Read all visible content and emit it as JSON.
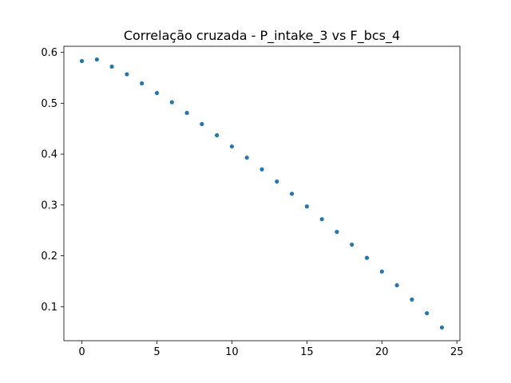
{
  "chart_data": {
    "type": "scatter",
    "title": "Correlação cruzada - P_intake_3 vs F_bcs_4",
    "xlabel": "",
    "ylabel": "",
    "xlim": [
      -1.2,
      25.2
    ],
    "ylim": [
      0.033,
      0.612
    ],
    "x_ticks": [
      0,
      5,
      10,
      15,
      20,
      25
    ],
    "y_ticks": [
      0.1,
      0.2,
      0.3,
      0.4,
      0.5,
      0.6
    ],
    "x_tick_labels": [
      "0",
      "5",
      "10",
      "15",
      "20",
      "25"
    ],
    "y_tick_labels": [
      "0.1",
      "0.2",
      "0.3",
      "0.4",
      "0.5",
      "0.6"
    ],
    "grid": false,
    "series": [
      {
        "color": "#1f77b4",
        "x": [
          0,
          1,
          2,
          3,
          4,
          5,
          6,
          7,
          8,
          9,
          10,
          11,
          12,
          13,
          14,
          15,
          16,
          17,
          18,
          19,
          20,
          21,
          22,
          23,
          24
        ],
        "y": [
          0.583,
          0.586,
          0.572,
          0.557,
          0.539,
          0.52,
          0.502,
          0.481,
          0.459,
          0.437,
          0.415,
          0.393,
          0.37,
          0.346,
          0.322,
          0.297,
          0.272,
          0.247,
          0.222,
          0.196,
          0.169,
          0.142,
          0.114,
          0.087,
          0.059
        ]
      }
    ]
  }
}
